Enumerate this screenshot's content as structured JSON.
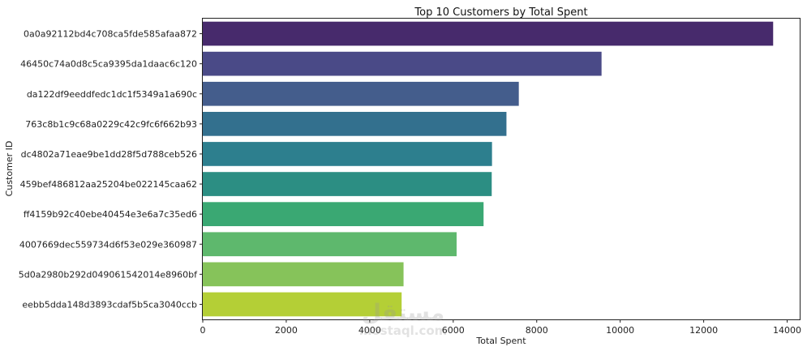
{
  "chart_data": {
    "type": "bar",
    "orientation": "horizontal",
    "title": "Top 10 Customers by Total Spent",
    "xlabel": "Total Spent",
    "ylabel": "Customer ID",
    "xlim": [
      0,
      14300
    ],
    "xticks": [
      0,
      2000,
      4000,
      6000,
      8000,
      10000,
      12000,
      14000
    ],
    "grid": false,
    "categories": [
      "0a0a92112bd4c708ca5fde585afaa872",
      "46450c74a0d8c5ca9395da1daac6c120",
      "da122df9eeddfedc1dc1f5349a1a690c",
      "763c8b1c9c68a0229c42c9fc6f662b93",
      "dc4802a71eae9be1dd28f5d788ceb526",
      "459bef486812aa25204be022145caa62",
      "ff4159b92c40ebe40454e3e6a7c35ed6",
      "4007669dec559734d6f53e029e360987",
      "5d0a2980b292d049061542014e8960bf",
      "eebb5dda148d3893cdaf5b5ca3040ccb"
    ],
    "values": [
      13664,
      9553,
      7571,
      7275,
      6929,
      6922,
      6727,
      6081,
      4810,
      4764
    ],
    "colors": [
      "#472a6c",
      "#4a4a87",
      "#445d8c",
      "#33708e",
      "#2d7f8e",
      "#2c8e83",
      "#3aa873",
      "#5eb86d",
      "#86c35a",
      "#b4cf36"
    ]
  },
  "watermark": {
    "arabic": "مستقل",
    "latin": "mostaql.com"
  }
}
